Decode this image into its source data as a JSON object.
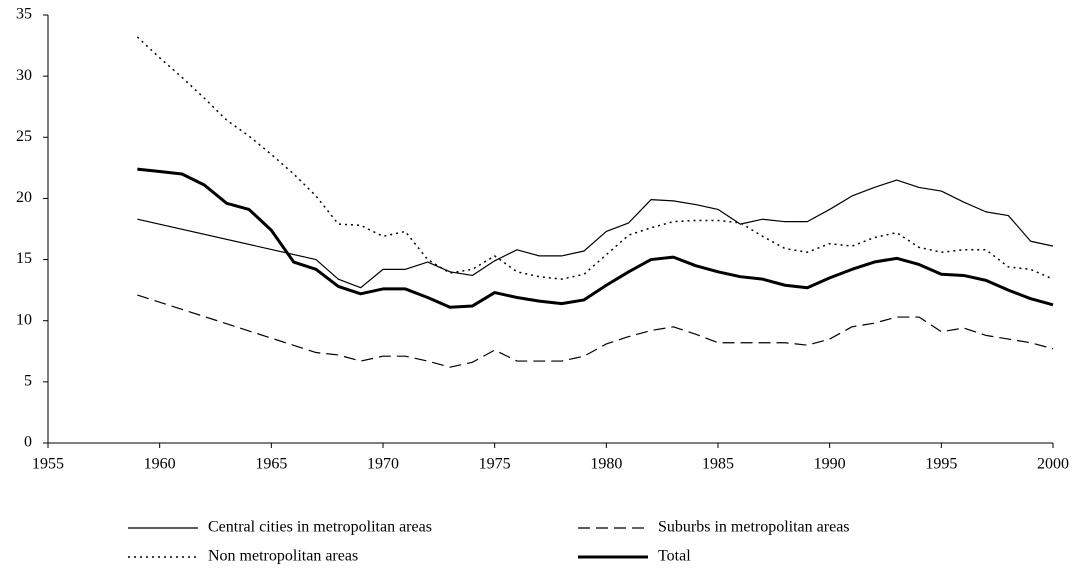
{
  "chart_data": {
    "type": "line",
    "xlim": [
      1955,
      2000
    ],
    "xticks": [
      1955,
      1960,
      1965,
      1970,
      1975,
      1980,
      1985,
      1990,
      1995,
      2000
    ],
    "ylim": [
      0,
      35
    ],
    "yticks": [
      0,
      5,
      10,
      15,
      20,
      25,
      30,
      35
    ],
    "series": [
      {
        "name": "Central cities in metropolitan areas",
        "color": "#000000",
        "dash": "solid",
        "width": 1.2,
        "x": [
          1959,
          1967,
          1968,
          1969,
          1970,
          1971,
          1972,
          1973,
          1974,
          1975,
          1976,
          1977,
          1978,
          1979,
          1980,
          1981,
          1982,
          1983,
          1984,
          1985,
          1986,
          1987,
          1988,
          1989,
          1990,
          1991,
          1992,
          1993,
          1994,
          1995,
          1996,
          1997,
          1998,
          1999,
          2000
        ],
        "values": [
          18.3,
          15.0,
          13.4,
          12.7,
          14.2,
          14.2,
          14.8,
          14.0,
          13.7,
          14.9,
          15.8,
          15.3,
          15.3,
          15.7,
          17.3,
          18.0,
          19.9,
          19.8,
          19.5,
          19.1,
          17.9,
          18.3,
          18.1,
          18.1,
          19.1,
          20.2,
          20.9,
          21.5,
          20.9,
          20.6,
          19.7,
          18.9,
          18.6,
          16.5,
          16.1
        ]
      },
      {
        "name": "Suburbs in metropolitan areas",
        "color": "#000000",
        "dash": "dashed",
        "width": 1.2,
        "x": [
          1959,
          1967,
          1968,
          1969,
          1970,
          1971,
          1972,
          1973,
          1974,
          1975,
          1976,
          1977,
          1978,
          1979,
          1980,
          1981,
          1982,
          1983,
          1984,
          1985,
          1986,
          1987,
          1988,
          1989,
          1990,
          1991,
          1992,
          1993,
          1994,
          1995,
          1996,
          1997,
          1998,
          1999,
          2000
        ],
        "values": [
          12.1,
          7.4,
          7.2,
          6.7,
          7.1,
          7.1,
          6.7,
          6.2,
          6.6,
          7.6,
          6.7,
          6.7,
          6.7,
          7.1,
          8.1,
          8.7,
          9.2,
          9.5,
          8.9,
          8.2,
          8.2,
          8.2,
          8.2,
          8.0,
          8.5,
          9.5,
          9.8,
          10.3,
          10.3,
          9.1,
          9.4,
          8.8,
          8.5,
          8.2,
          7.7
        ]
      },
      {
        "name": "Non metropolitan areas",
        "color": "#000000",
        "dash": "dotted",
        "width": 1.5,
        "x": [
          1959,
          1960,
          1961,
          1962,
          1963,
          1964,
          1965,
          1966,
          1967,
          1968,
          1969,
          1970,
          1971,
          1972,
          1973,
          1974,
          1975,
          1976,
          1977,
          1978,
          1979,
          1980,
          1981,
          1982,
          1983,
          1984,
          1985,
          1986,
          1987,
          1988,
          1989,
          1990,
          1991,
          1992,
          1993,
          1994,
          1995,
          1996,
          1997,
          1998,
          1999,
          2000
        ],
        "values": [
          33.2,
          31.5,
          29.9,
          28.2,
          26.4,
          25.1,
          23.6,
          22.0,
          20.2,
          17.9,
          17.8,
          16.9,
          17.3,
          15.0,
          13.9,
          14.2,
          15.3,
          14.0,
          13.6,
          13.4,
          13.8,
          15.4,
          17.0,
          17.6,
          18.1,
          18.2,
          18.2,
          18.0,
          16.9,
          15.9,
          15.6,
          16.3,
          16.1,
          16.8,
          17.2,
          16.0,
          15.6,
          15.8,
          15.8,
          14.4,
          14.2,
          13.4
        ]
      },
      {
        "name": "Total",
        "color": "#000000",
        "dash": "solid",
        "width": 3,
        "x": [
          1959,
          1960,
          1961,
          1962,
          1963,
          1964,
          1965,
          1966,
          1967,
          1968,
          1969,
          1970,
          1971,
          1972,
          1973,
          1974,
          1975,
          1976,
          1977,
          1978,
          1979,
          1980,
          1981,
          1982,
          1983,
          1984,
          1985,
          1986,
          1987,
          1988,
          1989,
          1990,
          1991,
          1992,
          1993,
          1994,
          1995,
          1996,
          1997,
          1998,
          1999,
          2000
        ],
        "values": [
          22.4,
          22.2,
          22.0,
          21.1,
          19.6,
          19.1,
          17.4,
          14.8,
          14.2,
          12.8,
          12.2,
          12.6,
          12.6,
          11.9,
          11.1,
          11.2,
          12.3,
          11.9,
          11.6,
          11.4,
          11.7,
          12.9,
          14.0,
          15.0,
          15.2,
          14.5,
          14.0,
          13.6,
          13.4,
          12.9,
          12.7,
          13.5,
          14.2,
          14.8,
          15.1,
          14.6,
          13.8,
          13.7,
          13.3,
          12.5,
          11.8,
          11.3
        ]
      }
    ]
  }
}
